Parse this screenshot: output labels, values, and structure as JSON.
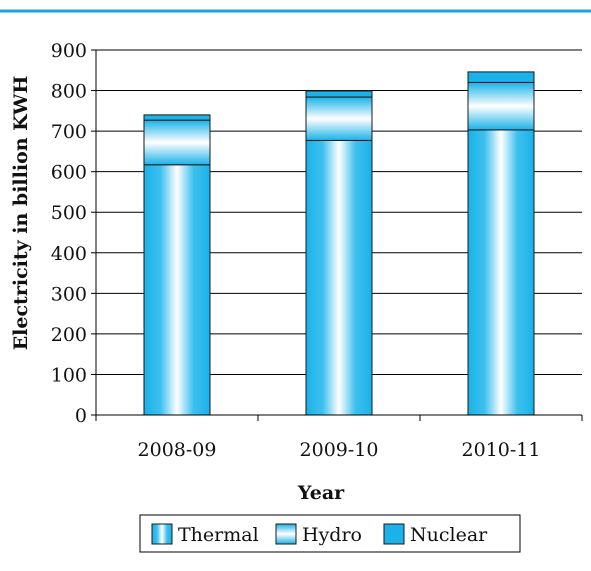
{
  "chart_data": {
    "type": "bar",
    "stacked": true,
    "categories": [
      "2008-09",
      "2009-10",
      "2010-11"
    ],
    "series": [
      {
        "name": "Thermal",
        "values": [
          617,
          677,
          703
        ],
        "color": "#1ab2e8",
        "style": "vertical-gradient"
      },
      {
        "name": "Hydro",
        "values": [
          110,
          107,
          117
        ],
        "color": "#1ab2e8",
        "style": "horizontal-gradient"
      },
      {
        "name": "Nuclear",
        "values": [
          13,
          15,
          26
        ],
        "color": "#1ab2e8",
        "style": "solid"
      }
    ],
    "xlabel": "Year",
    "ylabel": "Electricity in billion KWH",
    "ylim": [
      0,
      900
    ],
    "yticks": [
      0,
      100,
      200,
      300,
      400,
      500,
      600,
      700,
      800,
      900
    ],
    "grid": true,
    "legend_position": "bottom",
    "accent_line_color": "#1aa3dc"
  }
}
